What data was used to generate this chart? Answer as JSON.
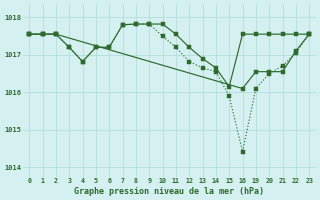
{
  "title": "Graphe pression niveau de la mer (hPa)",
  "background_color": "#d4f0f0",
  "grid_color": "#b0d8d8",
  "line_color": "#2d6a2d",
  "marker_color": "#2d6a2d",
  "ylim": [
    1013.75,
    1018.35
  ],
  "yticks": [
    1014,
    1015,
    1016,
    1017,
    1018
  ],
  "xtick_labels": [
    "0",
    "1",
    "2",
    "3",
    "4",
    "5",
    "6",
    "7",
    "8",
    "9",
    "10",
    "11",
    "12",
    "13",
    "14",
    "15",
    "16",
    "19",
    "20",
    "21",
    "22",
    "23"
  ],
  "line1": {
    "x": [
      0,
      1,
      2,
      3,
      4,
      5,
      6,
      7,
      8,
      9,
      10,
      11,
      12,
      13,
      14,
      15,
      16,
      19,
      20,
      21,
      22,
      23
    ],
    "y": [
      1017.55,
      1017.55,
      1017.55,
      1017.2,
      1016.82,
      1017.2,
      1017.2,
      1017.8,
      1017.82,
      1017.82,
      1017.82,
      1017.55,
      1017.2,
      1016.9,
      1016.65,
      1016.15,
      1017.55,
      1017.55,
      1017.55,
      1017.55,
      1017.55,
      1017.55
    ]
  },
  "line2": {
    "x": [
      0,
      1,
      2,
      16,
      19,
      20,
      21,
      22,
      23
    ],
    "y": [
      1017.55,
      1017.55,
      1017.55,
      1016.1,
      1016.55,
      1016.55,
      1016.55,
      1017.1,
      1017.55
    ]
  },
  "line3": {
    "x": [
      0,
      1,
      2,
      3,
      4,
      5,
      6,
      7,
      8,
      9,
      10,
      11,
      12,
      13,
      14,
      15,
      16,
      19,
      20,
      21,
      22,
      23
    ],
    "y": [
      1017.55,
      1017.55,
      1017.55,
      1017.2,
      1016.82,
      1017.2,
      1017.2,
      1017.8,
      1017.82,
      1017.82,
      1017.5,
      1017.2,
      1016.82,
      1016.65,
      1016.55,
      1015.9,
      1014.42,
      1016.1,
      1016.5,
      1016.7,
      1017.05,
      1017.55
    ],
    "dotted": true
  }
}
